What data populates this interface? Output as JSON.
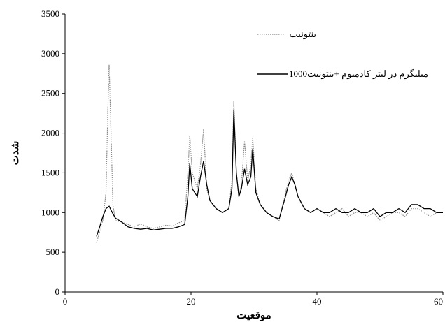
{
  "chart_data": {
    "type": "line",
    "title": "",
    "xlabel": "موقعیت",
    "ylabel": "شدت",
    "xlim": [
      0,
      60
    ],
    "ylim": [
      0,
      3500
    ],
    "x_ticks": [
      0,
      20,
      40,
      60
    ],
    "x_tick_labels": [
      "0",
      "20",
      "40",
      "60"
    ],
    "y_ticks": [
      0,
      500,
      1000,
      1500,
      2000,
      2500,
      3000,
      3500
    ],
    "y_tick_labels": [
      "0",
      "500",
      "1000",
      "1500",
      "2000",
      "2500",
      "3000",
      "3500"
    ],
    "grid": false,
    "legend_position": "top-right",
    "series": [
      {
        "name": "بنتونیت",
        "style": "dotted",
        "color": "#8a8a8a",
        "x": [
          5,
          5.5,
          6,
          6.5,
          6.8,
          7.0,
          7.3,
          7.6,
          8,
          9,
          10,
          11,
          12,
          13,
          14,
          15,
          16,
          17,
          18,
          19,
          19.5,
          19.8,
          20.2,
          21,
          21.5,
          22,
          22.5,
          23,
          24,
          25,
          26,
          26.5,
          26.8,
          27.2,
          27.6,
          28,
          28.5,
          29,
          29.5,
          29.8,
          30.3,
          31,
          32,
          33,
          34,
          35,
          35.5,
          36,
          36.5,
          37,
          38,
          39,
          40,
          41,
          42,
          43,
          44,
          45,
          46,
          47,
          48,
          49,
          50,
          51,
          52,
          53,
          54,
          55,
          56,
          57,
          58,
          59,
          60
        ],
        "y": [
          620,
          760,
          900,
          1250,
          2300,
          2860,
          2000,
          1100,
          900,
          880,
          850,
          820,
          860,
          820,
          800,
          820,
          840,
          830,
          870,
          900,
          1500,
          1970,
          1500,
          1300,
          1600,
          2050,
          1300,
          1150,
          1050,
          1000,
          1050,
          1400,
          2400,
          1500,
          1200,
          1350,
          1900,
          1400,
          1600,
          1950,
          1300,
          1100,
          1000,
          950,
          900,
          1250,
          1400,
          1500,
          1350,
          1200,
          1050,
          1000,
          1050,
          1000,
          950,
          1000,
          1050,
          950,
          1000,
          1000,
          950,
          1000,
          900,
          950,
          1000,
          1000,
          950,
          1050,
          1050,
          1000,
          950,
          1000,
          1000
        ]
      },
      {
        "name": "1000میلیگرم در لیتر کادمیوم +بنتونیت",
        "style": "solid",
        "color": "#000000",
        "x": [
          5,
          5.5,
          6,
          6.5,
          7,
          7.5,
          8,
          9,
          10,
          11,
          12,
          13,
          14,
          15,
          16,
          17,
          18,
          19,
          19.5,
          19.8,
          20.2,
          21,
          21.5,
          22,
          22.5,
          23,
          24,
          25,
          26,
          26.5,
          26.8,
          27.2,
          27.6,
          28,
          28.5,
          29,
          29.5,
          29.8,
          30.3,
          31,
          32,
          33,
          34,
          35,
          35.5,
          36,
          36.5,
          37,
          38,
          39,
          40,
          41,
          42,
          43,
          44,
          45,
          46,
          47,
          48,
          49,
          50,
          51,
          52,
          53,
          54,
          55,
          56,
          57,
          58,
          59,
          60
        ],
        "y": [
          700,
          820,
          950,
          1050,
          1080,
          1000,
          930,
          880,
          820,
          800,
          790,
          800,
          780,
          790,
          800,
          800,
          820,
          850,
          1200,
          1620,
          1300,
          1200,
          1450,
          1650,
          1350,
          1150,
          1050,
          1000,
          1050,
          1300,
          2300,
          1500,
          1200,
          1300,
          1550,
          1350,
          1450,
          1800,
          1250,
          1100,
          1000,
          950,
          920,
          1200,
          1350,
          1450,
          1350,
          1200,
          1050,
          1000,
          1050,
          1000,
          1000,
          1050,
          1000,
          1000,
          1050,
          1000,
          1000,
          1050,
          950,
          1000,
          1000,
          1050,
          1000,
          1100,
          1100,
          1050,
          1050,
          1000,
          1000
        ]
      }
    ]
  }
}
